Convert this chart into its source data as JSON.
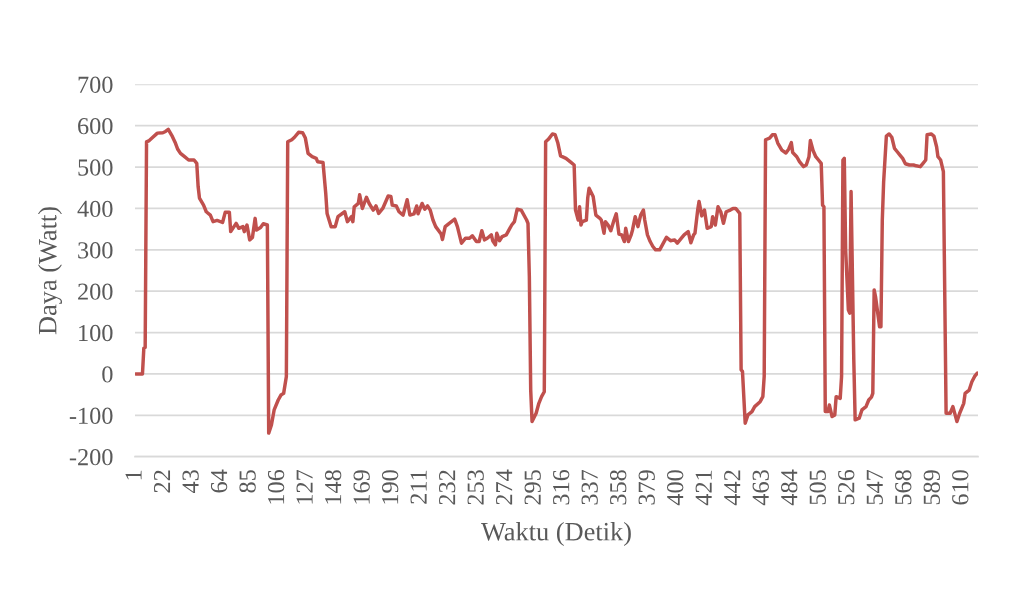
{
  "chart_data": {
    "type": "line",
    "xlabel": "Waktu (Detik)",
    "ylabel": "Daya (Watt)",
    "x": [
      1,
      6,
      7,
      8,
      9,
      11,
      13,
      17,
      21,
      23,
      25,
      28,
      30,
      32,
      34,
      37,
      40,
      44,
      46,
      47,
      48,
      51,
      53,
      56,
      58,
      61,
      65,
      67,
      70,
      71,
      75,
      77,
      80,
      81,
      83,
      85,
      87,
      89,
      90,
      93,
      95,
      98,
      99,
      101,
      103,
      106,
      108,
      110,
      112,
      113,
      116,
      118,
      121,
      124,
      126,
      128,
      131,
      134,
      135,
      139,
      141,
      142,
      145,
      148,
      150,
      155,
      157,
      160,
      161,
      162,
      165,
      166,
      168,
      171,
      173,
      176,
      178,
      180,
      183,
      187,
      189,
      190,
      193,
      195,
      198,
      201,
      203,
      206,
      208,
      209,
      212,
      214,
      216,
      218,
      220,
      222,
      226,
      227,
      229,
      232,
      236,
      238,
      241,
      244,
      247,
      249,
      252,
      254,
      256,
      258,
      260,
      263,
      264,
      266,
      267,
      269,
      271,
      274,
      276,
      278,
      280,
      282,
      285,
      289,
      290,
      291,
      292,
      293,
      296,
      298,
      300,
      302,
      303,
      305,
      308,
      310,
      312,
      314,
      318,
      321,
      324,
      325,
      327,
      328,
      329,
      330,
      333,
      334,
      335,
      338,
      340,
      343,
      344,
      346,
      347,
      349,
      351,
      353,
      355,
      357,
      359,
      361,
      362,
      364,
      366,
      367,
      369,
      371,
      373,
      375,
      376,
      378,
      380,
      382,
      384,
      387,
      389,
      392,
      395,
      398,
      400,
      403,
      405,
      408,
      410,
      412,
      413,
      415,
      416,
      418,
      420,
      422,
      425,
      426,
      428,
      430,
      432,
      434,
      436,
      439,
      441,
      443,
      446,
      447,
      448,
      450,
      452,
      455,
      457,
      461,
      463,
      464,
      465,
      468,
      470,
      472,
      474,
      477,
      480,
      482,
      484,
      485,
      488,
      490,
      493,
      495,
      497,
      498,
      500,
      502,
      504,
      506,
      507,
      508,
      509,
      511,
      512,
      514,
      516,
      517,
      520,
      521,
      522,
      523,
      524,
      526,
      527,
      528,
      530,
      531,
      534,
      536,
      539,
      541,
      543,
      544,
      545,
      546,
      549,
      550,
      551,
      552,
      554,
      556,
      558,
      560,
      562,
      564,
      566,
      568,
      571,
      574,
      576,
      579,
      581,
      583,
      584,
      587,
      589,
      591,
      592,
      594,
      596,
      598,
      601,
      603,
      604,
      606,
      608,
      611,
      612,
      615,
      617,
      619,
      621
    ],
    "series": [
      {
        "color": "#c0504d",
        "values": [
          0,
          0,
          62,
          64,
          561,
          564,
          570,
          582,
          583,
          586,
          591,
          574,
          560,
          543,
          533,
          525,
          517,
          517,
          509,
          453,
          425,
          408,
          392,
          384,
          368,
          371,
          366,
          391,
          391,
          344,
          364,
          352,
          356,
          344,
          360,
          324,
          330,
          376,
          348,
          354,
          363,
          360,
          -143,
          -123,
          -87,
          -63,
          -51,
          -47,
          -6,
          561,
          566,
          572,
          584,
          583,
          570,
          533,
          525,
          521,
          513,
          511,
          437,
          388,
          356,
          356,
          380,
          392,
          368,
          380,
          368,
          404,
          412,
          433,
          400,
          427,
          412,
          396,
          406,
          388,
          400,
          430,
          429,
          408,
          406,
          392,
          384,
          421,
          384,
          387,
          406,
          387,
          412,
          398,
          406,
          396,
          372,
          356,
          338,
          325,
          356,
          364,
          374,
          356,
          316,
          328,
          328,
          334,
          320,
          320,
          346,
          324,
          328,
          336,
          322,
          312,
          340,
          322,
          332,
          336,
          348,
          360,
          368,
          398,
          396,
          372,
          364,
          235,
          -39,
          -115,
          -95,
          -71,
          -55,
          -43,
          561,
          567,
          580,
          578,
          558,
          527,
          521,
          513,
          505,
          396,
          372,
          404,
          360,
          368,
          372,
          425,
          449,
          429,
          384,
          376,
          372,
          340,
          368,
          360,
          346,
          368,
          387,
          338,
          336,
          320,
          352,
          320,
          336,
          348,
          380,
          356,
          384,
          396,
          372,
          336,
          320,
          308,
          300,
          300,
          312,
          330,
          322,
          324,
          316,
          328,
          336,
          344,
          317,
          336,
          340,
          396,
          417,
          382,
          396,
          352,
          356,
          380,
          360,
          404,
          392,
          364,
          392,
          396,
          400,
          400,
          388,
          10,
          6,
          -119,
          -99,
          -91,
          -79,
          -67,
          -55,
          -6,
          566,
          570,
          578,
          578,
          558,
          541,
          534,
          543,
          559,
          535,
          525,
          513,
          501,
          505,
          525,
          564,
          540,
          525,
          517,
          509,
          408,
          404,
          -91,
          -91,
          -75,
          -103,
          -99,
          -55,
          -59,
          -6,
          517,
          521,
          300,
          155,
          147,
          441,
          34,
          -111,
          -107,
          -87,
          -79,
          -63,
          -56,
          -47,
          203,
          187,
          114,
          114,
          372,
          465,
          575,
          580,
          572,
          545,
          537,
          529,
          521,
          508,
          505,
          505,
          503,
          501,
          509,
          517,
          578,
          580,
          575,
          549,
          525,
          517,
          489,
          -95,
          -95,
          -79,
          -91,
          -115,
          -95,
          -71,
          -47,
          -39,
          -19,
          -6,
          2
        ]
      }
    ],
    "xlim": [
      0.5,
      621.5
    ],
    "xticks": [
      1,
      22,
      43,
      64,
      85,
      106,
      127,
      148,
      169,
      190,
      211,
      232,
      253,
      274,
      295,
      316,
      337,
      358,
      379,
      400,
      421,
      442,
      463,
      484,
      505,
      526,
      547,
      568,
      589,
      610
    ],
    "ylim": [
      -200,
      700
    ],
    "yticks": [
      -200,
      -100,
      0,
      100,
      200,
      300,
      400,
      500,
      600,
      700
    ],
    "grid": "y",
    "line_style": "solid"
  }
}
